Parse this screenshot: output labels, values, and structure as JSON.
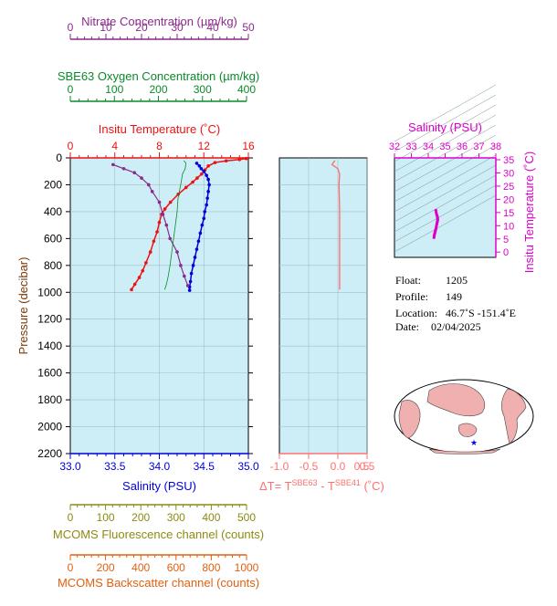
{
  "colors": {
    "nitrate": "#8b2a8b",
    "oxygen": "#0a8a2a",
    "temperature": "#ee1111",
    "salinity": "#0000dd",
    "delta_t": "#ff7070",
    "fluorescence": "#8b8b10",
    "backscatter": "#e06010",
    "ts_salinity": "#dd00cc",
    "plot_bg": "#cdeef7"
  },
  "axes": {
    "nitrate": {
      "label": "Nitrate Concentration (µm/kg)",
      "ticks": [
        "0",
        "10",
        "20",
        "30",
        "40",
        "50"
      ]
    },
    "oxygen": {
      "label": "SBE63 Oxygen Concentration (µm/kg)",
      "ticks": [
        "0",
        "100",
        "200",
        "300",
        "400"
      ]
    },
    "temperature": {
      "label": "Insitu Temperature (˚C)",
      "ticks": [
        "0",
        "4",
        "8",
        "12",
        "16"
      ]
    },
    "pressure": {
      "label": "Pressure (decibar)",
      "ticks": [
        "0",
        "200",
        "400",
        "600",
        "800",
        "1000",
        "1200",
        "1400",
        "1600",
        "1800",
        "2000",
        "2200"
      ]
    },
    "salinity": {
      "label": "Salinity (PSU)",
      "ticks": [
        "33.0",
        "33.5",
        "34.0",
        "34.5",
        "35.0"
      ]
    },
    "fluorescence": {
      "label": "MCOMS Fluorescence channel (counts)",
      "ticks": [
        "0",
        "100",
        "200",
        "300",
        "400",
        "500"
      ]
    },
    "backscatter": {
      "label": "MCOMS Backscatter channel (counts)",
      "ticks": [
        "0",
        "200",
        "400",
        "600",
        "800",
        "1000"
      ]
    },
    "delta_t": {
      "label_prefix": "ΔT= T",
      "sup1": "SBE63",
      "label_mid": " - T",
      "sup2": "SBE41",
      "label_suffix": " (˚C)",
      "ticks": [
        "-1.0",
        "-0.5",
        "0.0",
        "0.5"
      ]
    },
    "ts_salinity": {
      "label": "Salinity (PSU)",
      "ticks": [
        "32",
        "33",
        "34",
        "35",
        "36",
        "37",
        "38"
      ]
    },
    "ts_temperature": {
      "label": "Insitu Temperature (˚C)",
      "ticks": [
        "0",
        "5",
        "10",
        "15",
        "20",
        "25",
        "30",
        "35"
      ]
    }
  },
  "float_info": {
    "float_label": "Float:",
    "float_value": "1205",
    "profile_label": "Profile:",
    "profile_value": "149",
    "location_label": "Location:",
    "location_value": "46.7˚S  -151.4˚E",
    "date_label": "Date:",
    "date_value": "02/04/2025"
  },
  "chart_data": [
    {
      "type": "line",
      "name": "profile",
      "ylim": [
        2200,
        0
      ],
      "series": [
        {
          "name": "Insitu Temperature",
          "xlim": [
            0,
            16
          ],
          "x": [
            15.8,
            15.2,
            14.0,
            13.0,
            12.4,
            12.1,
            11.8,
            11.4,
            11.0,
            10.4,
            9.7,
            9.0,
            8.5,
            8.2,
            8.0,
            7.8,
            7.5,
            7.2,
            6.8,
            6.5,
            6.2,
            5.8,
            5.5
          ],
          "y": [
            5,
            12,
            22,
            35,
            60,
            90,
            120,
            150,
            180,
            220,
            270,
            330,
            380,
            420,
            480,
            550,
            620,
            700,
            780,
            840,
            890,
            940,
            980
          ]
        },
        {
          "name": "Salinity",
          "xlim": [
            33.0,
            35.0
          ],
          "x": [
            34.42,
            34.45,
            34.47,
            34.5,
            34.53,
            34.55,
            34.56,
            34.55,
            34.54,
            34.53,
            34.51,
            34.5,
            34.48,
            34.46,
            34.44,
            34.42,
            34.4,
            34.38,
            34.36,
            34.35,
            34.34,
            34.34
          ],
          "y": [
            40,
            60,
            80,
            100,
            130,
            160,
            200,
            250,
            300,
            350,
            400,
            450,
            500,
            560,
            620,
            680,
            740,
            800,
            860,
            920,
            960,
            985
          ]
        },
        {
          "name": "Nitrate Concentration",
          "xlim": [
            0,
            50
          ],
          "x": [
            12,
            15,
            18,
            20,
            22,
            23,
            25,
            26,
            27,
            28,
            30,
            31,
            32,
            33
          ],
          "y": [
            50,
            80,
            110,
            150,
            200,
            250,
            330,
            420,
            500,
            600,
            700,
            800,
            880,
            950
          ]
        },
        {
          "name": "SBE63 Oxygen Concentration",
          "xlim": [
            0,
            400
          ],
          "x": [
            255,
            260,
            258,
            252,
            250,
            248,
            245,
            242,
            240,
            236,
            232,
            228,
            224,
            220,
            216,
            212
          ],
          "y": [
            20,
            40,
            80,
            120,
            160,
            200,
            250,
            300,
            400,
            500,
            600,
            700,
            800,
            880,
            940,
            980
          ]
        }
      ]
    },
    {
      "type": "line",
      "name": "delta-t",
      "xlim": [
        -1.0,
        0.5
      ],
      "ylim": [
        2200,
        0
      ],
      "series": [
        {
          "name": "ΔT",
          "x": [
            -0.05,
            -0.1,
            0.0,
            0.03,
            0.02,
            0.03,
            0.03,
            0.03,
            0.03,
            0.03
          ],
          "y": [
            20,
            50,
            80,
            120,
            200,
            400,
            600,
            800,
            900,
            980
          ]
        }
      ]
    },
    {
      "type": "scatter",
      "name": "ts-diagram",
      "xlim": [
        32,
        38
      ],
      "ylim": [
        -2,
        35
      ],
      "series": [
        {
          "name": "T-S",
          "x": [
            34.34,
            34.35,
            34.36,
            34.38,
            34.4,
            34.42,
            34.44,
            34.46,
            34.48,
            34.5,
            34.52,
            34.54,
            34.55,
            34.56,
            34.55,
            34.53,
            34.5,
            34.47,
            34.45
          ],
          "y": [
            5.5,
            6.0,
            6.5,
            7.0,
            7.5,
            8.0,
            8.5,
            9.0,
            9.7,
            10.4,
            11.0,
            11.6,
            12.0,
            12.4,
            13.0,
            13.6,
            14.2,
            15.0,
            15.8
          ]
        }
      ]
    }
  ]
}
